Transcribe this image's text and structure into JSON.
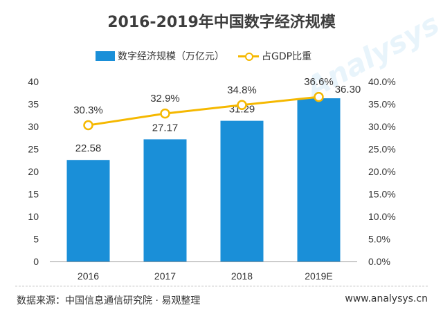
{
  "title": "2016-2019年中国数字经济规模",
  "legend": {
    "bar_label": "数字经济规模（万亿元）",
    "line_label": "占GDP比重"
  },
  "chart_data": {
    "type": "bar",
    "title": "2016-2019年中国数字经济规模",
    "categories": [
      "2016",
      "2017",
      "2018",
      "2019E"
    ],
    "series": [
      {
        "name": "数字经济规模（万亿元）",
        "type": "bar",
        "axis": "left",
        "values": [
          22.58,
          27.17,
          31.29,
          36.3
        ],
        "labels": [
          "22.58",
          "27.17",
          "31.29",
          "36.30"
        ]
      },
      {
        "name": "占GDP比重",
        "type": "line",
        "axis": "right",
        "values": [
          30.3,
          32.9,
          34.8,
          36.6
        ],
        "labels": [
          "30.3%",
          "32.9%",
          "34.8%",
          "36.6%"
        ]
      }
    ],
    "left_axis": {
      "min": 0,
      "max": 40,
      "ticks": [
        "0",
        "5",
        "10",
        "15",
        "20",
        "25",
        "30",
        "35",
        "40"
      ]
    },
    "right_axis": {
      "min": 0,
      "max": 40,
      "ticks": [
        "0.0%",
        "5.0%",
        "10.0%",
        "15.0%",
        "20.0%",
        "25.0%",
        "30.0%",
        "35.0%",
        "40.0%"
      ]
    },
    "colors": {
      "bar": "#1a8fd8",
      "line": "#f5b800"
    }
  },
  "footer": {
    "source": "数据来源：中国信息通信研究院 · 易观整理",
    "site": "www.analysys.cn"
  },
  "watermark": "Analysys 易观的数据"
}
